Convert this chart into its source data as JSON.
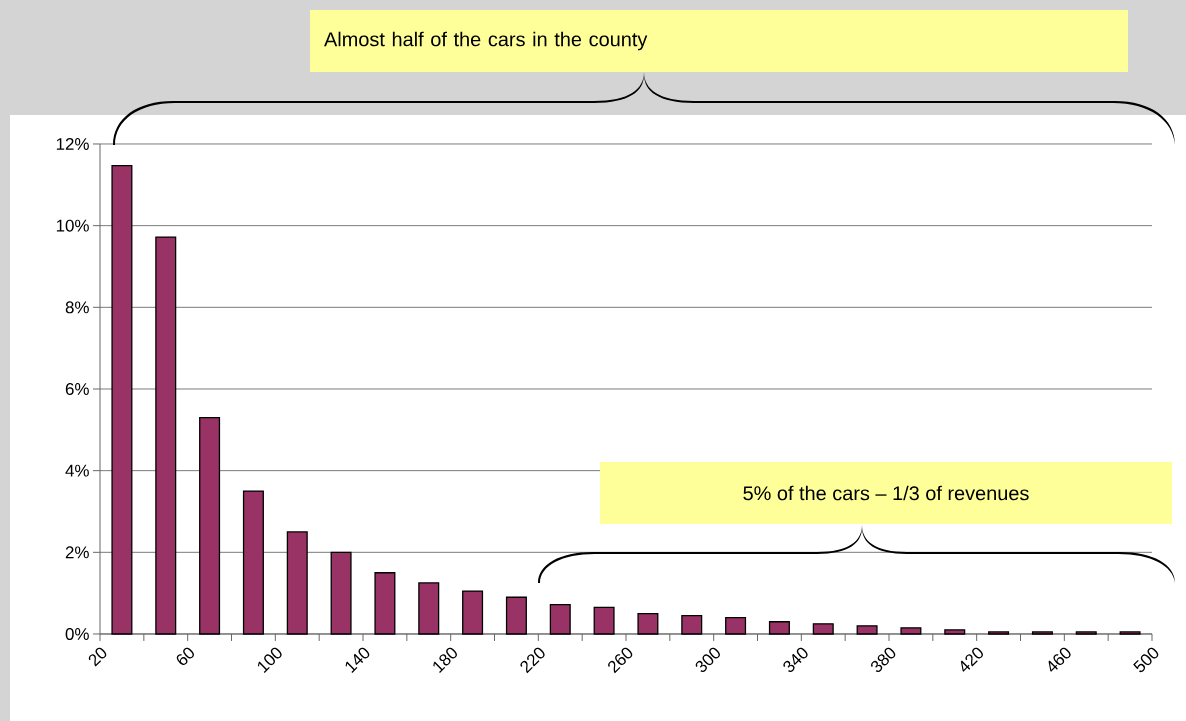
{
  "chart_data": {
    "type": "histogram",
    "bins": [
      20,
      40,
      60,
      80,
      100,
      120,
      140,
      160,
      180,
      200,
      220,
      240,
      260,
      280,
      300,
      320,
      340,
      360,
      380,
      400,
      420,
      440,
      460,
      480,
      500
    ],
    "values": [
      11.47,
      9.72,
      5.3,
      3.5,
      2.5,
      2.0,
      1.5,
      1.25,
      1.05,
      0.9,
      0.72,
      0.65,
      0.5,
      0.45,
      0.4,
      0.3,
      0.25,
      0.2,
      0.15,
      0.1,
      0.05,
      0.05,
      0.05,
      0.05
    ],
    "color": "#993366",
    "xlim": [
      20,
      500
    ],
    "xticks": [
      20,
      {
        "value": 40,
        "label": null
      },
      60,
      {
        "value": 80,
        "label": null
      },
      100,
      {
        "value": 120,
        "label": null
      },
      140,
      {
        "value": 160,
        "label": null
      },
      180,
      {
        "value": 200,
        "label": null
      },
      220,
      {
        "value": 240,
        "label": null
      },
      260,
      {
        "value": 280,
        "label": null
      },
      300,
      {
        "value": 320,
        "label": null
      },
      340,
      {
        "value": 360,
        "label": null
      },
      380,
      {
        "value": 400,
        "label": null
      },
      420,
      {
        "value": 440,
        "label": null
      },
      460,
      {
        "value": 480,
        "label": null
      },
      500
    ],
    "ylim": [
      0,
      12
    ],
    "yticks": [
      {
        "value": 0,
        "label": "0%"
      },
      {
        "value": 2,
        "label": "2%"
      },
      {
        "value": 4,
        "label": "4%"
      },
      {
        "value": 6,
        "label": "6%"
      },
      {
        "value": 8,
        "label": "8%"
      },
      {
        "value": 10,
        "label": "10%"
      },
      {
        "value": 12,
        "label": "12%"
      }
    ],
    "grid": "y",
    "annotations": [
      "Almost half of the cars in the county",
      "5% of the cars – 1/3 of revenues"
    ]
  }
}
